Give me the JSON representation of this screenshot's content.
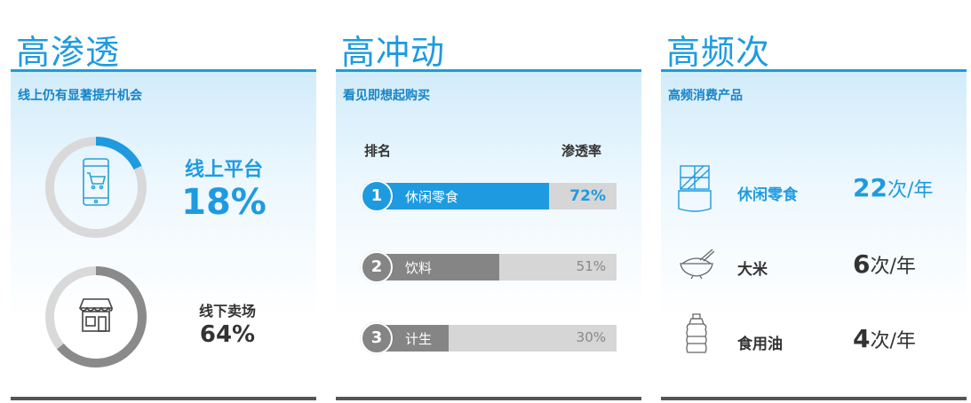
{
  "panels": [
    {
      "title": "高渗透",
      "subtitle": "线上仍有显著提升机会"
    },
    {
      "title": "高冲动",
      "subtitle": "看见即想起购买"
    },
    {
      "title": "高频次",
      "subtitle": "高频消费产品"
    }
  ],
  "penetration": {
    "online": {
      "label": "线上平台",
      "value": "18%",
      "fraction": 0.18,
      "color": "#1e9be0"
    },
    "offline": {
      "label": "线下卖场",
      "value": "64%",
      "fraction": 0.64,
      "color": "#8a8a8a"
    }
  },
  "ranking": {
    "header_rank": "排名",
    "header_rate": "渗透率",
    "items": [
      {
        "rank": "1",
        "name": "休闲零食",
        "pct": "72%",
        "fraction": 0.72,
        "color": "#1e9be0"
      },
      {
        "rank": "2",
        "name": "饮料",
        "pct": "51%",
        "fraction": 0.51,
        "color": "#858585"
      },
      {
        "rank": "3",
        "name": "计生",
        "pct": "30%",
        "fraction": 0.3,
        "color": "#858585"
      }
    ]
  },
  "frequency": {
    "items": [
      {
        "name": "休闲零食",
        "num": "22",
        "unit": "次/年",
        "icon": "snack-icon",
        "highlight": true
      },
      {
        "name": "大米",
        "num": "6",
        "unit": "次/年",
        "icon": "rice-bowl-icon",
        "highlight": false
      },
      {
        "name": "食用油",
        "num": "4",
        "unit": "次/年",
        "icon": "oil-bottle-icon",
        "highlight": false
      }
    ]
  },
  "colors": {
    "accent": "#1e9be0",
    "gray": "#858585",
    "text": "#333333"
  }
}
